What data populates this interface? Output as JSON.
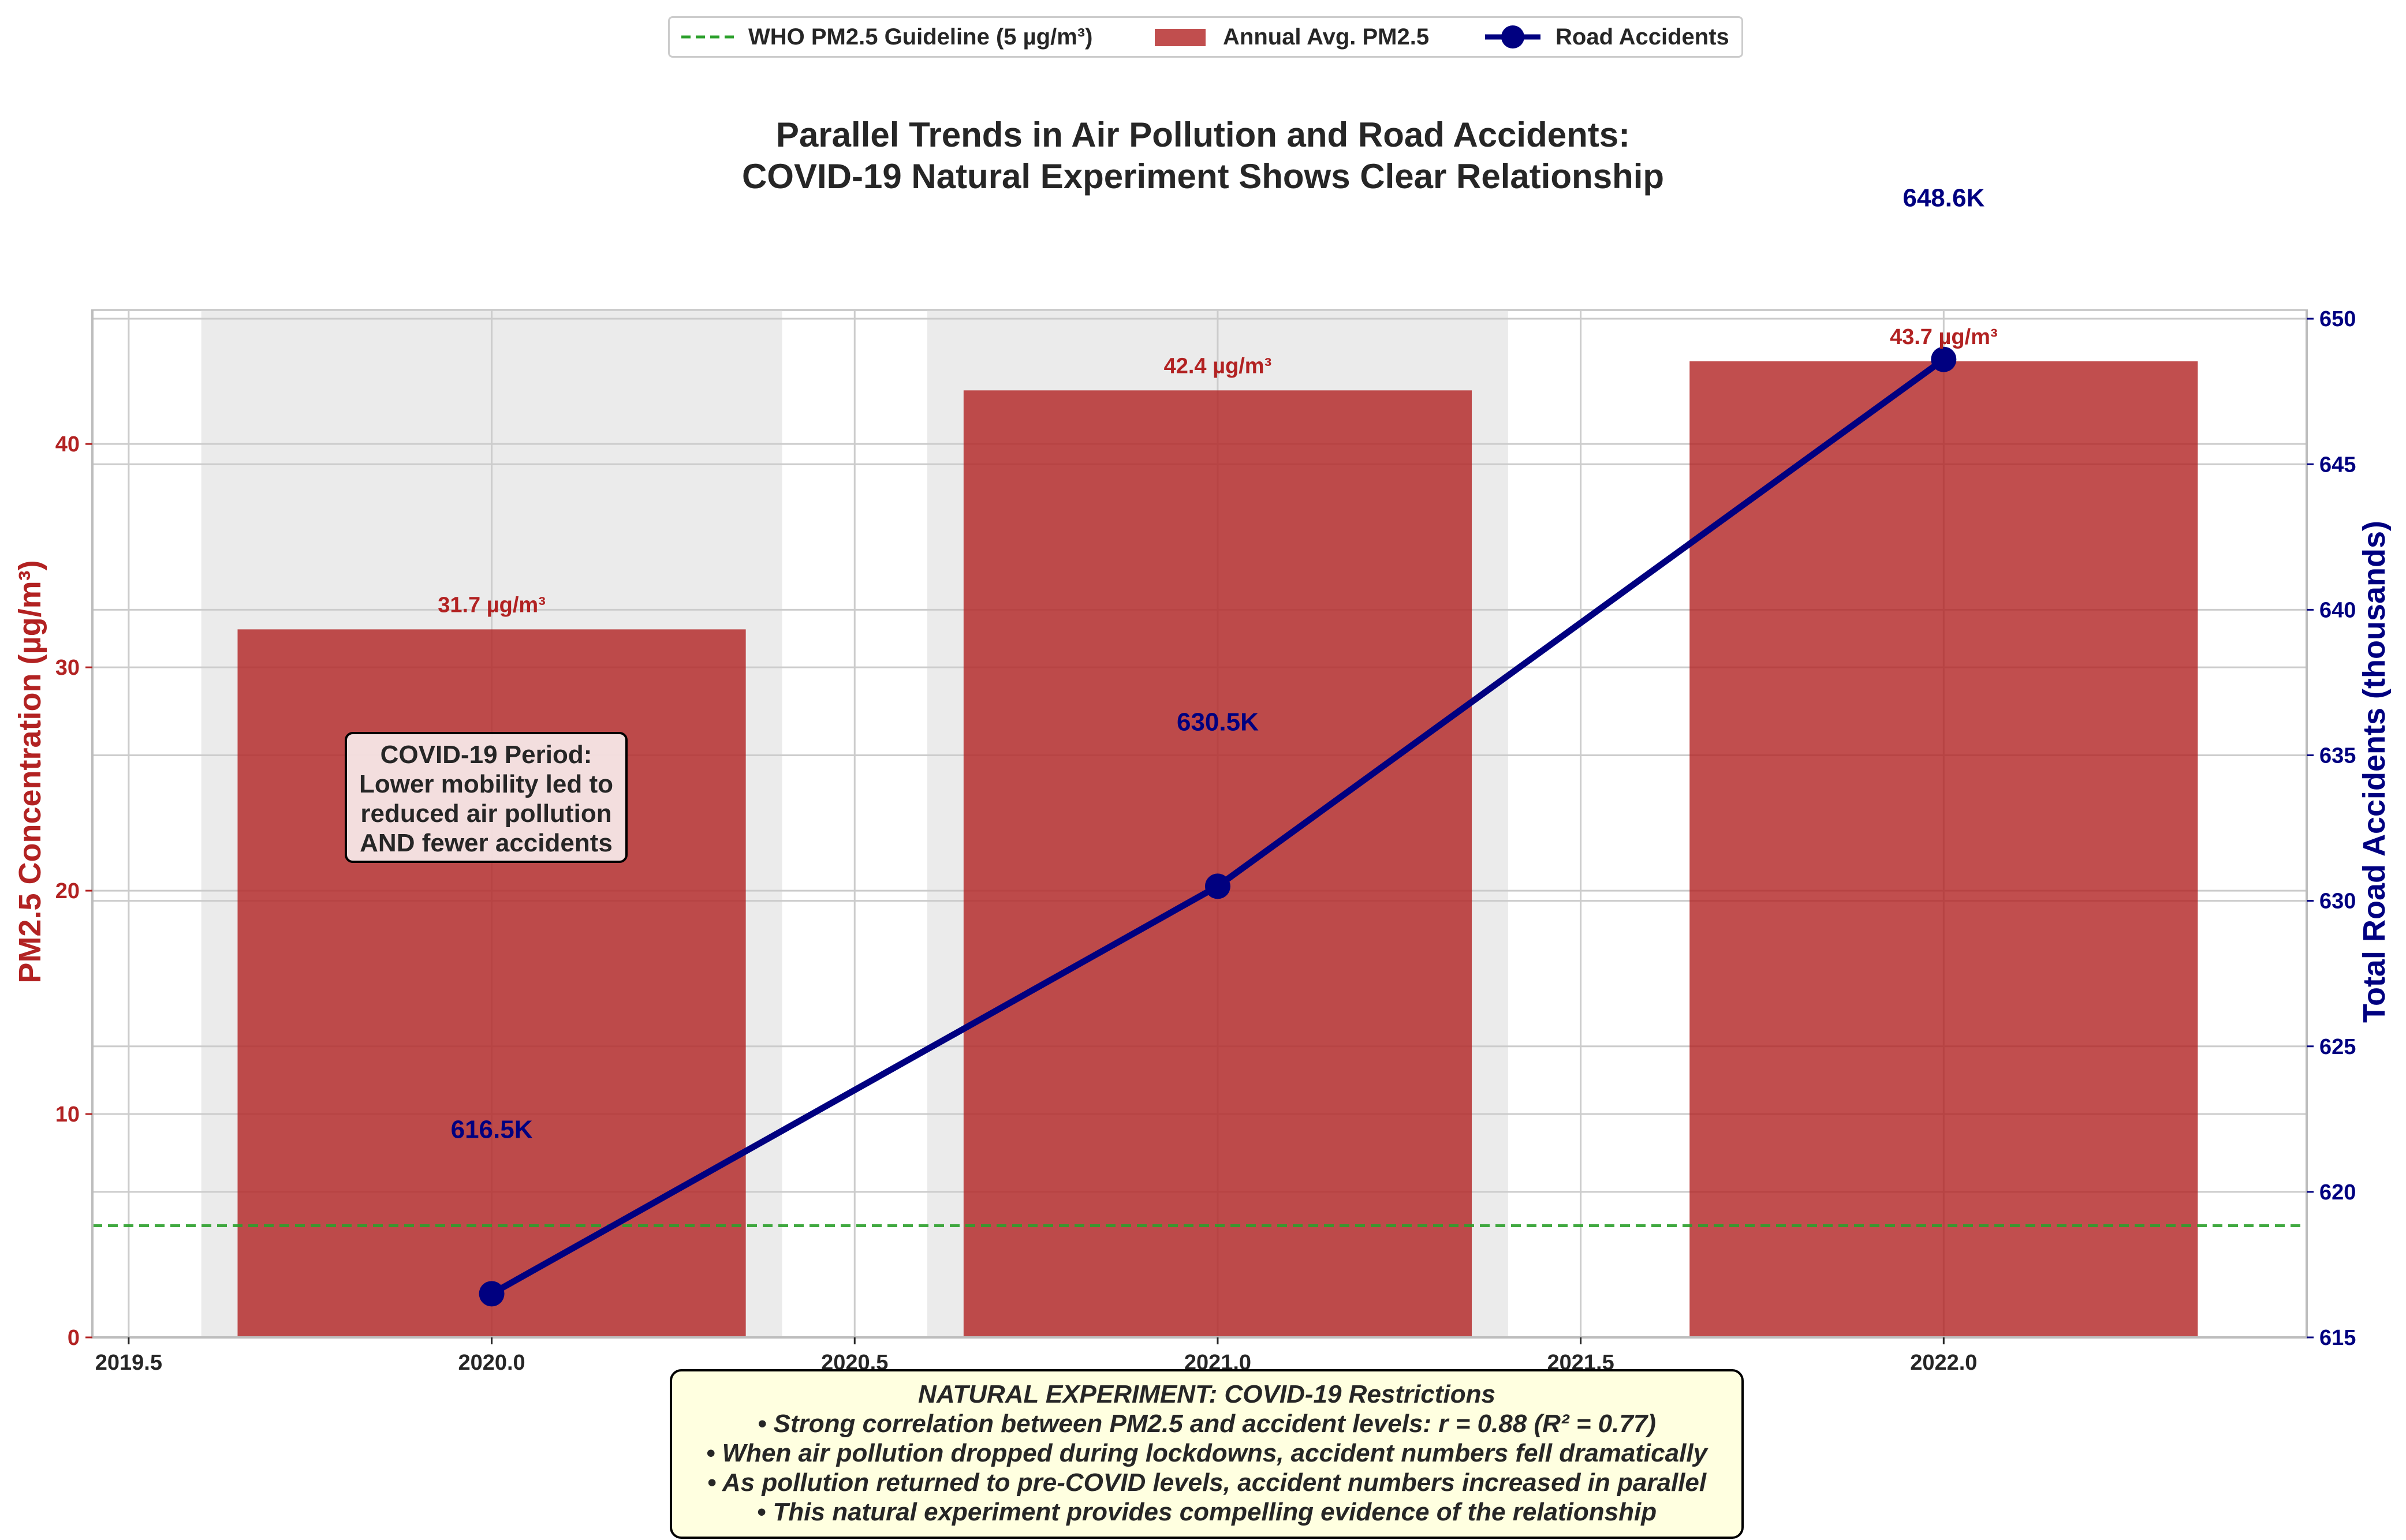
{
  "chart_data": {
    "type": "bar",
    "title_line1": "Parallel Trends in Air Pollution and Road Accidents:",
    "title_line2": "COVID-19 Natural Experiment Shows Clear Relationship",
    "ylabel_left": "PM2.5 Concentration (µg/m³)",
    "ylabel_right": "Total Road Accidents (thousands)",
    "x": [
      2020.0,
      2021.0,
      2022.0
    ],
    "xlim": [
      2019.45,
      2022.5
    ],
    "x_ticks": [
      "2019.5",
      "2020.0",
      "2020.5",
      "2021.0",
      "2021.5",
      "2022.0"
    ],
    "x_tick_values": [
      2019.5,
      2020.0,
      2020.5,
      2021.0,
      2021.5,
      2022.0
    ],
    "ylim_left": [
      0,
      46
    ],
    "y_ticks_left": [
      0,
      10,
      20,
      30,
      40
    ],
    "ylim_right": [
      615,
      650.3
    ],
    "y_ticks_right": [
      615,
      620,
      625,
      630,
      635,
      640,
      645,
      650
    ],
    "grid": true,
    "legend_position": "top-center",
    "series": [
      {
        "name": "Annual Avg. PM2.5",
        "kind": "bar",
        "axis": "left",
        "values": [
          31.7,
          42.4,
          43.7
        ],
        "labels": [
          "31.7 µg/m³",
          "42.4 µg/m³",
          "43.7 µg/m³"
        ],
        "color": "#b22222"
      },
      {
        "name": "Road Accidents",
        "kind": "line",
        "axis": "right",
        "values": [
          616.5,
          630.5,
          648.6
        ],
        "labels": [
          "616.5K",
          "630.5K",
          "648.6K"
        ],
        "color": "#000080"
      },
      {
        "name": "WHO PM2.5 Guideline (5 µg/m³)",
        "kind": "hline",
        "axis": "left",
        "value": 5,
        "color": "#2ca02c"
      }
    ],
    "shaded_periods": [
      [
        2019.6,
        2020.4
      ],
      [
        2020.6,
        2021.4
      ]
    ],
    "annotation": {
      "lines": [
        "COVID-19 Period:",
        "Lower mobility led to",
        "reduced air pollution",
        "AND fewer accidents"
      ]
    },
    "note": {
      "lines": [
        "NATURAL EXPERIMENT: COVID-19 Restrictions",
        "• Strong correlation between PM2.5 and accident levels: r = 0.88 (R² = 0.77)",
        "• When air pollution dropped during lockdowns, accident numbers fell dramatically",
        "• As pollution returned to pre-COVID levels, accident numbers increased in parallel",
        "• This natural experiment provides compelling evidence of the relationship"
      ]
    }
  }
}
